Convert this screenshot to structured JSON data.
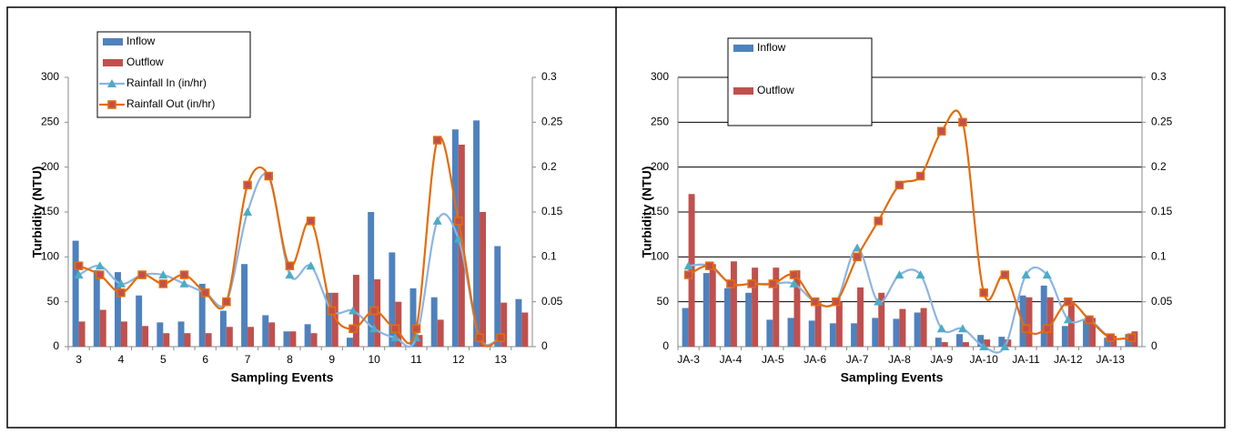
{
  "chart_data": [
    {
      "type": "bar-line",
      "x_label": "Sampling Events",
      "y_label": "Turbidity (NTU)",
      "categories": [
        "3",
        null,
        "4",
        null,
        "5",
        null,
        "6",
        null,
        "7",
        null,
        "8",
        null,
        "9",
        null,
        "10",
        null,
        "11",
        null,
        "12",
        null,
        "13",
        null
      ],
      "series": [
        {
          "name": "Inflow",
          "kind": "bar",
          "color": "#4f81bd",
          "values": [
            118,
            85,
            83,
            57,
            27,
            28,
            70,
            40,
            92,
            35,
            17,
            25,
            60,
            10,
            150,
            105,
            65,
            55,
            242,
            252,
            112,
            53
          ]
        },
        {
          "name": "Outflow",
          "kind": "bar",
          "color": "#c0504d",
          "values": [
            28,
            41,
            28,
            23,
            15,
            15,
            15,
            22,
            22,
            27,
            17,
            15,
            60,
            80,
            75,
            50,
            13,
            30,
            225,
            150,
            49,
            38
          ]
        },
        {
          "name": "Rainfall In (in/hr)",
          "kind": "line",
          "axis": "y2",
          "color": "#8db4e2",
          "marker": "triangle",
          "marker_color": "#4bacc6",
          "values": [
            0.08,
            0.09,
            0.07,
            0.08,
            0.08,
            0.07,
            0.06,
            0.05,
            0.15,
            0.19,
            0.08,
            0.09,
            0.04,
            0.04,
            0.02,
            0.01,
            0.01,
            0.14,
            0.12,
            0.01,
            0.01,
            null
          ]
        },
        {
          "name": "Rainfall Out (in/hr)",
          "kind": "line",
          "axis": "y2",
          "color": "#e46c0a",
          "marker": "square",
          "marker_color": "#c0504d",
          "values": [
            0.09,
            0.08,
            0.06,
            0.08,
            0.07,
            0.08,
            0.06,
            0.05,
            0.18,
            0.19,
            0.09,
            0.14,
            0.04,
            0.02,
            0.04,
            0.02,
            0.02,
            0.23,
            0.14,
            0.01,
            0.01,
            null
          ]
        }
      ],
      "ylim": [
        0,
        300
      ],
      "yticks": [
        0,
        50,
        100,
        150,
        200,
        250,
        300
      ],
      "y2lim": [
        0,
        0.3
      ],
      "y2ticks": [
        0,
        0.05,
        0.1,
        0.15,
        0.2,
        0.25,
        0.3
      ],
      "grid": false,
      "legend": "top-left"
    },
    {
      "type": "bar-line",
      "x_label": "Sampling Events",
      "y_label": "Turbidity (NTU)",
      "categories": [
        "JA-3",
        null,
        "JA-4",
        null,
        "JA-5",
        null,
        "JA-6",
        null,
        "JA-7",
        null,
        "JA-8",
        null,
        "JA-9",
        null,
        "JA-10",
        null,
        "JA-11",
        null,
        "JA-12",
        null,
        "JA-13",
        null
      ],
      "series": [
        {
          "name": "Inflow",
          "kind": "bar",
          "color": "#4f81bd",
          "values": [
            43,
            82,
            65,
            60,
            30,
            32,
            29,
            26,
            26,
            32,
            31,
            38,
            10,
            14,
            13,
            11,
            57,
            68,
            23,
            30,
            10,
            14
          ]
        },
        {
          "name": "Outflow",
          "kind": "bar",
          "color": "#c0504d",
          "values": [
            170,
            92,
            95,
            88,
            88,
            85,
            50,
            50,
            66,
            60,
            42,
            43,
            5,
            5,
            8,
            8,
            55,
            55,
            50,
            32,
            12,
            17
          ]
        },
        {
          "kind": "line",
          "axis": "y2",
          "color": "#8db4e2",
          "marker": "triangle",
          "marker_color": "#4bacc6",
          "values": [
            0.09,
            0.09,
            0.07,
            0.07,
            0.07,
            0.07,
            0.05,
            0.05,
            0.11,
            0.05,
            0.08,
            0.08,
            0.02,
            0.02,
            0,
            0,
            0.08,
            0.08,
            0.03,
            0.03,
            0.01,
            0.01
          ]
        },
        {
          "kind": "line",
          "axis": "y2",
          "color": "#e46c0a",
          "marker": "square",
          "marker_color": "#c0504d",
          "values": [
            0.08,
            0.09,
            0.07,
            0.07,
            0.07,
            0.08,
            0.05,
            0.05,
            0.1,
            0.14,
            0.18,
            0.19,
            0.24,
            0.25,
            0.06,
            0.08,
            0.02,
            0.02,
            0.05,
            0.03,
            0.01,
            0.01
          ]
        }
      ],
      "ylim": [
        0,
        300
      ],
      "yticks": [
        0,
        50,
        100,
        150,
        200,
        250,
        300
      ],
      "y2lim": [
        0,
        0.3
      ],
      "y2ticks": [
        0,
        0.05,
        0.1,
        0.15,
        0.2,
        0.25,
        0.3
      ],
      "grid": true,
      "legend": "top-left"
    }
  ]
}
